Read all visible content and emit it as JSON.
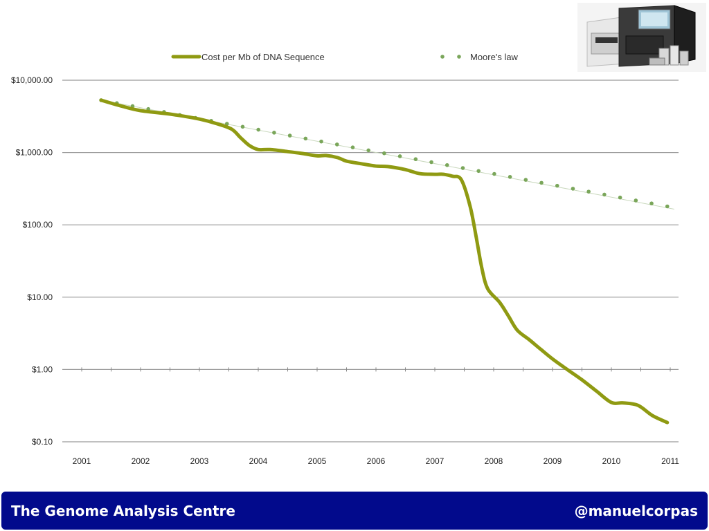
{
  "footer": {
    "left": "The Genome Analysis Centre",
    "right": "@manuelcorpas"
  },
  "photo": {
    "icon": "dna-sequencer-machine-icon"
  },
  "colors": {
    "cost": "#8f9a12",
    "moore": "#7aa65a",
    "footer": "#020a8c",
    "grid": "#9a9a9a"
  },
  "chart_data": {
    "type": "line",
    "title": "",
    "xlabel": "",
    "ylabel": "",
    "y_scale": "log",
    "ylim": [
      0.1,
      10000
    ],
    "xlim": [
      2001,
      2011
    ],
    "grid": true,
    "legend_position": "top",
    "x_ticks": [
      "2001",
      "2002",
      "2003",
      "2004",
      "2005",
      "2006",
      "2007",
      "2008",
      "2009",
      "2010",
      "2011"
    ],
    "y_ticks": [
      "$10,000.00",
      "$1,000.00",
      "$100.00",
      "$10.00",
      "$1.00",
      "$0.10"
    ],
    "series": [
      {
        "name": "Cost per Mb of DNA Sequence",
        "style": "line",
        "points": [
          [
            2001.33,
            5292
          ],
          [
            2001.67,
            4400
          ],
          [
            2002.0,
            3800
          ],
          [
            2002.5,
            3400
          ],
          [
            2003.0,
            2900
          ],
          [
            2003.3,
            2500
          ],
          [
            2003.55,
            2100
          ],
          [
            2003.7,
            1600
          ],
          [
            2003.85,
            1250
          ],
          [
            2004.0,
            1100
          ],
          [
            2004.2,
            1100
          ],
          [
            2004.5,
            1030
          ],
          [
            2004.75,
            970
          ],
          [
            2005.0,
            900
          ],
          [
            2005.15,
            910
          ],
          [
            2005.35,
            850
          ],
          [
            2005.5,
            760
          ],
          [
            2005.75,
            700
          ],
          [
            2006.0,
            650
          ],
          [
            2006.2,
            640
          ],
          [
            2006.5,
            580
          ],
          [
            2006.75,
            510
          ],
          [
            2007.0,
            500
          ],
          [
            2007.15,
            500
          ],
          [
            2007.3,
            470
          ],
          [
            2007.45,
            420
          ],
          [
            2007.6,
            180
          ],
          [
            2007.7,
            70
          ],
          [
            2007.8,
            25
          ],
          [
            2007.9,
            13
          ],
          [
            2008.1,
            8.5
          ],
          [
            2008.25,
            5.5
          ],
          [
            2008.4,
            3.5
          ],
          [
            2008.6,
            2.6
          ],
          [
            2008.8,
            1.9
          ],
          [
            2009.0,
            1.4
          ],
          [
            2009.25,
            1.0
          ],
          [
            2009.5,
            0.72
          ],
          [
            2009.75,
            0.5
          ],
          [
            2010.0,
            0.35
          ],
          [
            2010.2,
            0.345
          ],
          [
            2010.45,
            0.32
          ],
          [
            2010.7,
            0.23
          ],
          [
            2010.95,
            0.185
          ]
        ]
      },
      {
        "name": "Moore's law",
        "style": "dotted",
        "start": [
          2001.33,
          5292
        ],
        "end": [
          2010.95,
          180
        ]
      }
    ]
  }
}
